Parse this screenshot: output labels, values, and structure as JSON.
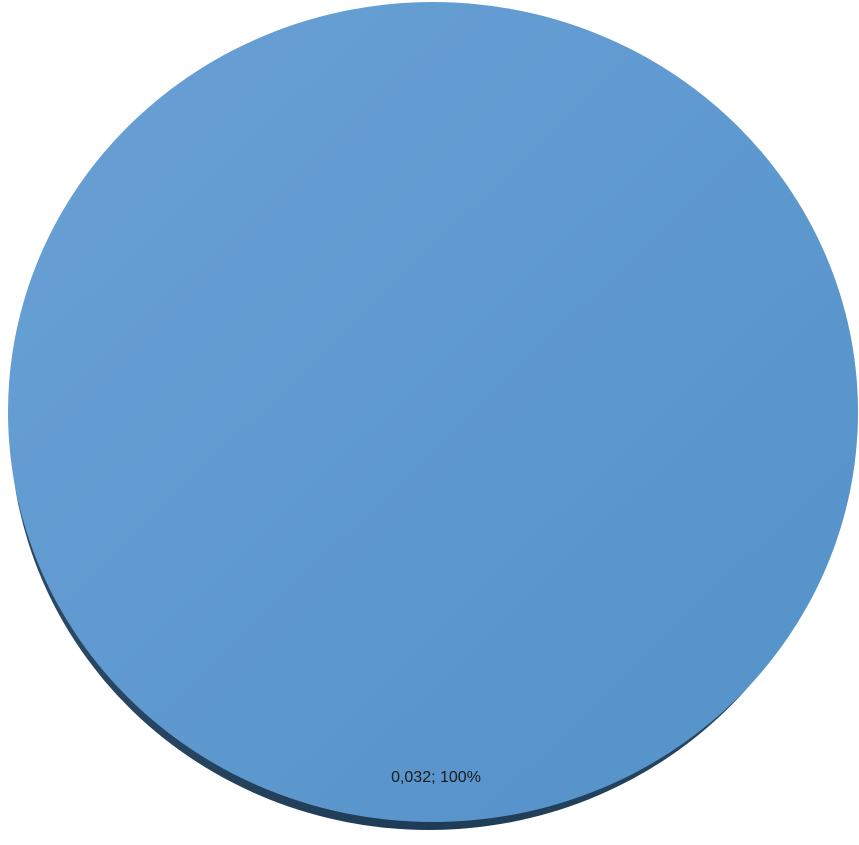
{
  "chart_data": {
    "type": "pie",
    "style": "3d",
    "slices": [
      {
        "value": 0.032,
        "percent": 100,
        "color": "#5b96cc",
        "label": "0,032; 100%"
      }
    ]
  }
}
